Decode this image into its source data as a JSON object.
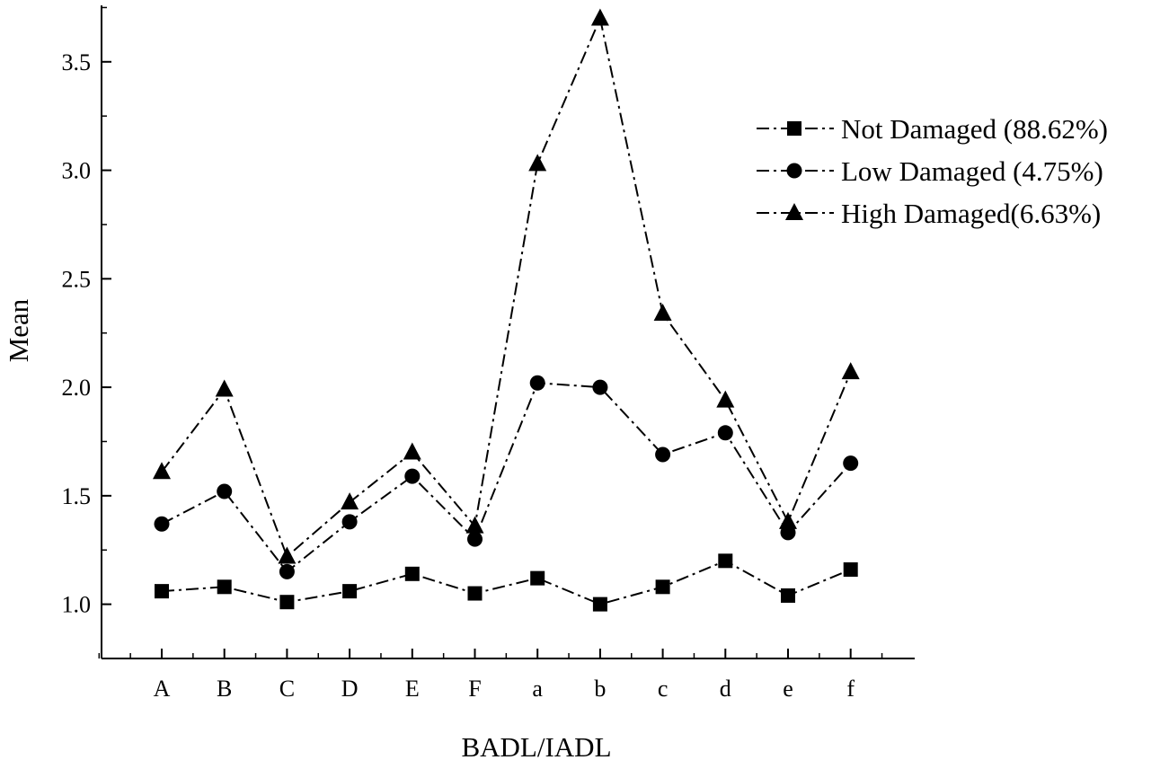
{
  "chart_data": {
    "type": "line",
    "categories": [
      "A",
      "B",
      "C",
      "D",
      "E",
      "F",
      "a",
      "b",
      "c",
      "d",
      "e",
      "f"
    ],
    "series": [
      {
        "name": "Not Damaged (88.62%)",
        "marker": "square",
        "values": [
          1.06,
          1.08,
          1.01,
          1.06,
          1.14,
          1.05,
          1.12,
          1.0,
          1.08,
          1.2,
          1.04,
          1.16
        ]
      },
      {
        "name": "Low Damaged (4.75%)",
        "marker": "circle",
        "values": [
          1.37,
          1.52,
          1.15,
          1.38,
          1.59,
          1.3,
          2.02,
          2.0,
          1.69,
          1.79,
          1.33,
          1.65
        ]
      },
      {
        "name": "High Damaged(6.63%)",
        "marker": "triangle",
        "values": [
          1.61,
          1.99,
          1.22,
          1.47,
          1.7,
          1.36,
          3.03,
          3.7,
          2.34,
          1.94,
          1.38,
          2.07
        ]
      }
    ],
    "xlabel": "BADL/IADL",
    "ylabel": "Mean",
    "yticks": [
      "1.0",
      "1.5",
      "2.0",
      "2.5",
      "3.0",
      "3.5"
    ],
    "ylim": [
      0.75,
      3.76
    ],
    "grid": false,
    "legend_position": "top-right",
    "line_style": "dash-dot",
    "color": "#000000"
  }
}
